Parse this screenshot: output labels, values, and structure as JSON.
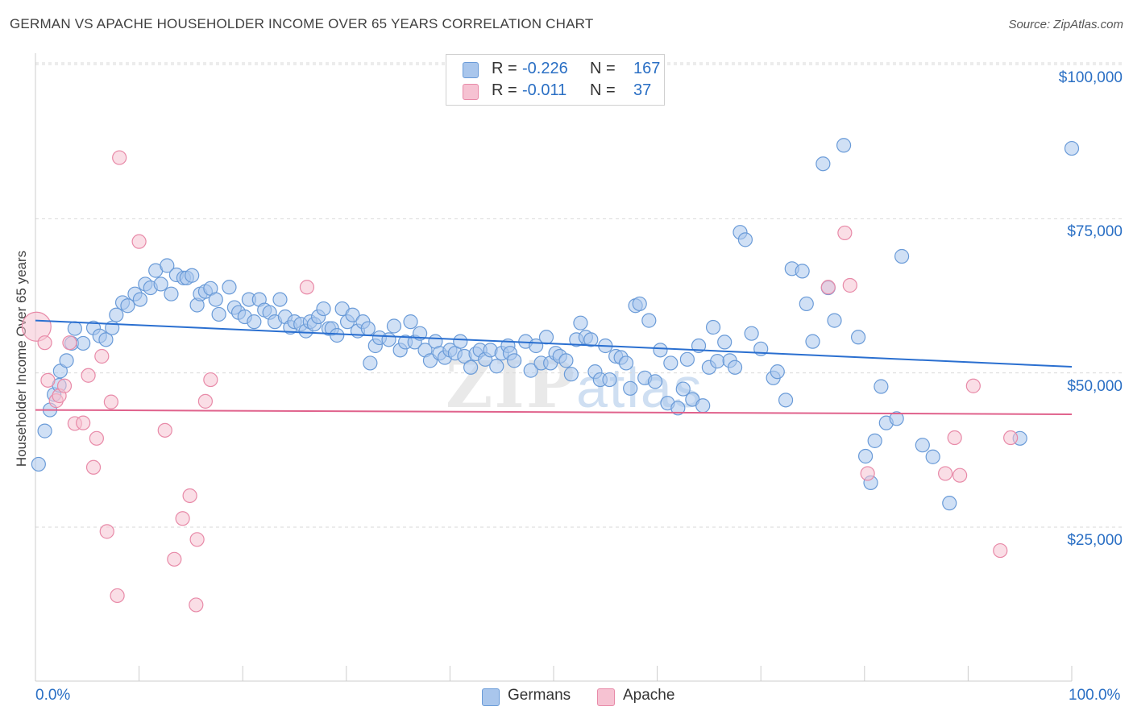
{
  "header": {
    "title": "GERMAN VS APACHE HOUSEHOLDER INCOME OVER 65 YEARS CORRELATION CHART",
    "source": "Source: ZipAtlas.com"
  },
  "watermark": {
    "zip": "ZIP",
    "atlas": "atlas"
  },
  "legend_top": {
    "rows": [
      {
        "r_label": "R =",
        "r_value": "-0.226",
        "n_label": "N =",
        "n_value": "167"
      },
      {
        "r_label": "R =",
        "r_value": "-0.011",
        "n_label": "N =",
        "n_value": "37"
      }
    ]
  },
  "legend_bottom": {
    "items": [
      "Germans",
      "Apache"
    ]
  },
  "colors": {
    "german_fill": "#a9c6ec",
    "german_stroke": "#6a9bd8",
    "german_line": "#2a6fd0",
    "apache_fill": "#f6c2d2",
    "apache_stroke": "#e88aa8",
    "apache_line": "#e0628c",
    "tick_label": "#2a6fc4",
    "grid": "#d9d9d9"
  },
  "chart_data": {
    "type": "scatter",
    "title": "GERMAN VS APACHE HOUSEHOLDER INCOME OVER 65 YEARS CORRELATION CHART",
    "xlabel": "",
    "ylabel": "Householder Income Over 65 years",
    "xlim": [
      0,
      100
    ],
    "ylim": [
      0,
      105000
    ],
    "x_tick_labels": [
      "0.0%",
      "100.0%"
    ],
    "y_ticks": [
      25000,
      50000,
      75000,
      100000
    ],
    "y_tick_labels": [
      "$25,000",
      "$50,000",
      "$75,000",
      "$100,000"
    ],
    "grid": "horizontal dashed",
    "legend_position": "top-center",
    "series": [
      {
        "name": "Germans",
        "r": -0.226,
        "n": 167,
        "trend": {
          "x": [
            0,
            100
          ],
          "y": [
            58500,
            51000
          ]
        },
        "points": [
          [
            0.3,
            35200
          ],
          [
            0.9,
            40600
          ],
          [
            1.4,
            44000
          ],
          [
            1.8,
            46500
          ],
          [
            2.3,
            48000
          ],
          [
            2.4,
            50300
          ],
          [
            3.0,
            52000
          ],
          [
            3.5,
            54800
          ],
          [
            3.8,
            57200
          ],
          [
            4.6,
            54800
          ],
          [
            5.6,
            57300
          ],
          [
            6.2,
            56000
          ],
          [
            6.8,
            55400
          ],
          [
            7.4,
            57300
          ],
          [
            7.8,
            59400
          ],
          [
            8.4,
            61400
          ],
          [
            8.9,
            60900
          ],
          [
            9.6,
            62800
          ],
          [
            10.1,
            61900
          ],
          [
            10.6,
            64400
          ],
          [
            11.1,
            63800
          ],
          [
            11.6,
            66600
          ],
          [
            12.1,
            64400
          ],
          [
            12.7,
            67400
          ],
          [
            13.1,
            62800
          ],
          [
            13.6,
            65900
          ],
          [
            14.3,
            65400
          ],
          [
            14.6,
            65400
          ],
          [
            15.1,
            65800
          ],
          [
            15.6,
            61000
          ],
          [
            15.9,
            62800
          ],
          [
            16.4,
            63200
          ],
          [
            16.9,
            63700
          ],
          [
            17.4,
            61900
          ],
          [
            17.7,
            59500
          ],
          [
            18.7,
            63900
          ],
          [
            19.2,
            60600
          ],
          [
            19.6,
            59800
          ],
          [
            20.2,
            59100
          ],
          [
            20.6,
            61900
          ],
          [
            21.1,
            58300
          ],
          [
            21.6,
            61900
          ],
          [
            22.1,
            60200
          ],
          [
            22.6,
            59800
          ],
          [
            23.1,
            58300
          ],
          [
            23.6,
            61900
          ],
          [
            24.1,
            59100
          ],
          [
            24.6,
            57400
          ],
          [
            25.0,
            58300
          ],
          [
            25.6,
            57900
          ],
          [
            26.1,
            56800
          ],
          [
            26.5,
            58300
          ],
          [
            26.9,
            57900
          ],
          [
            27.3,
            59100
          ],
          [
            27.8,
            60400
          ],
          [
            28.3,
            57200
          ],
          [
            28.6,
            57200
          ],
          [
            29.1,
            56100
          ],
          [
            29.6,
            60400
          ],
          [
            30.1,
            58300
          ],
          [
            30.6,
            59400
          ],
          [
            31.1,
            56800
          ],
          [
            31.6,
            58300
          ],
          [
            32.1,
            57200
          ],
          [
            32.3,
            51600
          ],
          [
            32.8,
            54400
          ],
          [
            33.2,
            55700
          ],
          [
            34.1,
            55400
          ],
          [
            34.6,
            57600
          ],
          [
            35.2,
            53700
          ],
          [
            35.7,
            55000
          ],
          [
            36.2,
            58300
          ],
          [
            36.6,
            55000
          ],
          [
            37.1,
            56400
          ],
          [
            37.6,
            53700
          ],
          [
            38.1,
            52000
          ],
          [
            38.6,
            55100
          ],
          [
            39.0,
            53200
          ],
          [
            39.5,
            52500
          ],
          [
            40.0,
            53700
          ],
          [
            40.5,
            53200
          ],
          [
            41.0,
            55100
          ],
          [
            41.4,
            52700
          ],
          [
            42.0,
            50900
          ],
          [
            42.5,
            53100
          ],
          [
            42.9,
            53700
          ],
          [
            43.4,
            52200
          ],
          [
            43.9,
            53700
          ],
          [
            44.5,
            51100
          ],
          [
            45.0,
            53200
          ],
          [
            45.6,
            54400
          ],
          [
            45.8,
            53200
          ],
          [
            46.2,
            52000
          ],
          [
            47.3,
            55100
          ],
          [
            47.8,
            50400
          ],
          [
            48.3,
            54400
          ],
          [
            48.8,
            51600
          ],
          [
            49.3,
            55800
          ],
          [
            49.7,
            51600
          ],
          [
            50.2,
            53200
          ],
          [
            50.6,
            52700
          ],
          [
            51.2,
            52000
          ],
          [
            51.7,
            49800
          ],
          [
            52.2,
            55400
          ],
          [
            52.6,
            58100
          ],
          [
            53.1,
            55800
          ],
          [
            53.6,
            55400
          ],
          [
            54.0,
            50200
          ],
          [
            54.5,
            48900
          ],
          [
            55.0,
            54400
          ],
          [
            55.4,
            48900
          ],
          [
            56.0,
            52700
          ],
          [
            56.5,
            52500
          ],
          [
            57.0,
            51600
          ],
          [
            57.4,
            47500
          ],
          [
            57.9,
            60900
          ],
          [
            58.3,
            61200
          ],
          [
            58.8,
            49200
          ],
          [
            59.2,
            58500
          ],
          [
            59.8,
            48600
          ],
          [
            60.3,
            53700
          ],
          [
            61.0,
            45100
          ],
          [
            61.3,
            51600
          ],
          [
            62.0,
            44300
          ],
          [
            62.5,
            47400
          ],
          [
            62.9,
            52200
          ],
          [
            63.4,
            45700
          ],
          [
            64.0,
            54400
          ],
          [
            64.4,
            44700
          ],
          [
            65.0,
            50900
          ],
          [
            65.4,
            57400
          ],
          [
            65.8,
            51900
          ],
          [
            66.5,
            55000
          ],
          [
            67.0,
            52000
          ],
          [
            67.5,
            50900
          ],
          [
            68.0,
            72800
          ],
          [
            68.5,
            71600
          ],
          [
            69.1,
            56400
          ],
          [
            70.0,
            53900
          ],
          [
            71.2,
            49200
          ],
          [
            71.6,
            50200
          ],
          [
            72.4,
            45600
          ],
          [
            73.0,
            66900
          ],
          [
            74.0,
            66500
          ],
          [
            74.4,
            61200
          ],
          [
            75.0,
            55100
          ],
          [
            76.0,
            83900
          ],
          [
            76.5,
            63800
          ],
          [
            77.1,
            58500
          ],
          [
            78.0,
            86900
          ],
          [
            79.4,
            55800
          ],
          [
            80.1,
            36500
          ],
          [
            80.6,
            32200
          ],
          [
            81.0,
            39000
          ],
          [
            81.6,
            47800
          ],
          [
            82.1,
            41900
          ],
          [
            83.1,
            42600
          ],
          [
            83.6,
            68900
          ],
          [
            85.6,
            38300
          ],
          [
            86.6,
            36400
          ],
          [
            88.2,
            28900
          ],
          [
            95.0,
            39400
          ],
          [
            100.0,
            86400
          ]
        ]
      },
      {
        "name": "Apache",
        "r": -0.011,
        "n": 37,
        "trend": {
          "x": [
            0,
            100
          ],
          "y": [
            44000,
            43300
          ]
        },
        "points": [
          [
            0.1,
            57500
          ],
          [
            0.9,
            54900
          ],
          [
            1.2,
            48800
          ],
          [
            2.0,
            45500
          ],
          [
            2.3,
            46300
          ],
          [
            2.8,
            47900
          ],
          [
            3.3,
            54900
          ],
          [
            3.8,
            41800
          ],
          [
            4.6,
            41900
          ],
          [
            5.1,
            49600
          ],
          [
            5.6,
            34700
          ],
          [
            5.9,
            39400
          ],
          [
            6.4,
            52700
          ],
          [
            6.9,
            24300
          ],
          [
            7.3,
            45300
          ],
          [
            7.9,
            13900
          ],
          [
            8.1,
            84900
          ],
          [
            10.0,
            71300
          ],
          [
            12.5,
            40700
          ],
          [
            13.4,
            19800
          ],
          [
            14.2,
            26400
          ],
          [
            14.9,
            30100
          ],
          [
            15.5,
            12400
          ],
          [
            15.6,
            23000
          ],
          [
            16.4,
            45400
          ],
          [
            16.9,
            48900
          ],
          [
            26.2,
            63900
          ],
          [
            76.5,
            63900
          ],
          [
            78.1,
            72700
          ],
          [
            78.6,
            64200
          ],
          [
            80.3,
            33700
          ],
          [
            87.8,
            33700
          ],
          [
            88.7,
            39500
          ],
          [
            89.2,
            33400
          ],
          [
            90.5,
            47900
          ],
          [
            93.1,
            21200
          ],
          [
            94.1,
            39500
          ]
        ]
      }
    ]
  }
}
